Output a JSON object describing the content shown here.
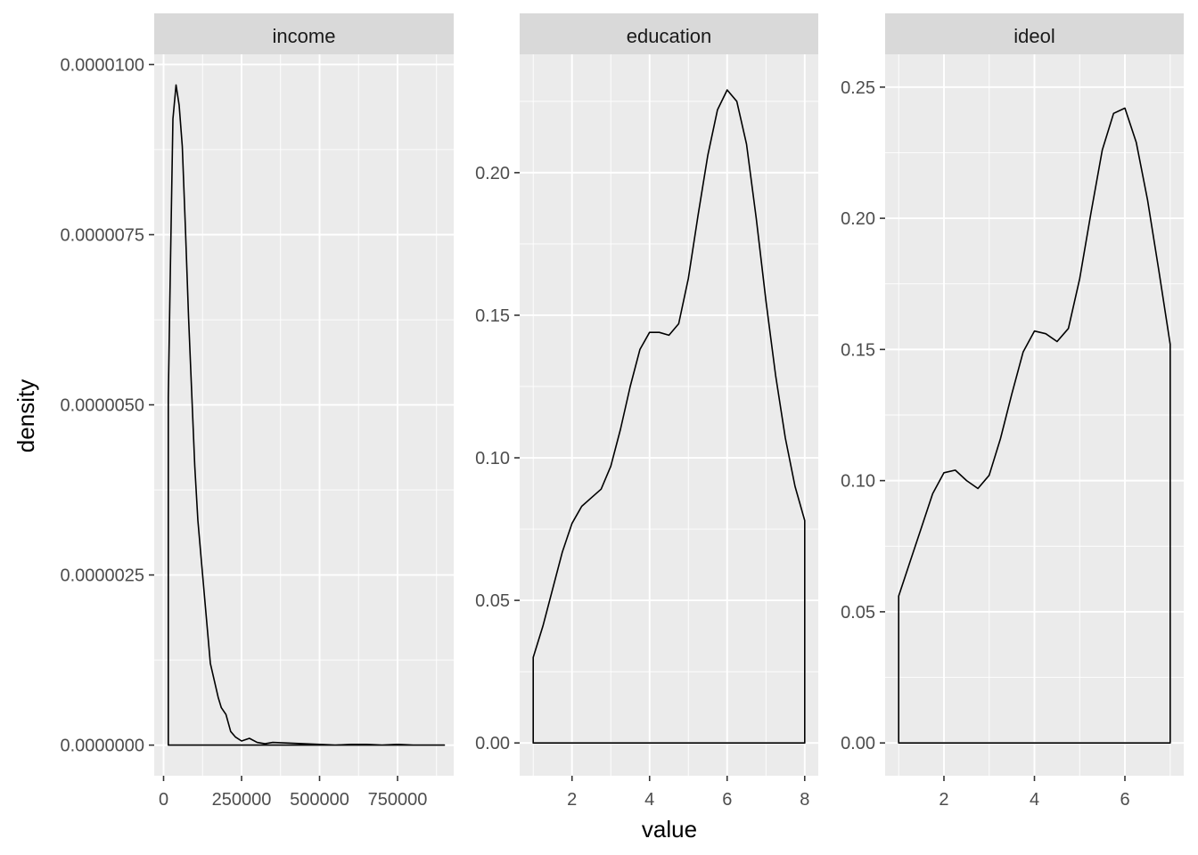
{
  "chart_data": {
    "type": "area",
    "xlabel": "value",
    "ylabel": "density",
    "facets": [
      {
        "name": "income",
        "xlim": [
          -30000,
          930000
        ],
        "ylim": [
          -4.5e-07,
          1.015e-05
        ],
        "x_ticks": [
          0,
          250000,
          500000,
          750000
        ],
        "x_tick_labels": [
          "0",
          "250000",
          "500000",
          "750000"
        ],
        "y_ticks": [
          0,
          2.5e-06,
          5e-06,
          7.5e-06,
          1e-05
        ],
        "y_tick_labels": [
          "0.0000000",
          "0.0000025",
          "0.0000050",
          "0.0000075",
          "0.0000100"
        ],
        "x": [
          15000,
          20000,
          25000,
          30000,
          40000,
          50000,
          60000,
          70000,
          80000,
          90000,
          100000,
          110000,
          125000,
          150000,
          175000,
          185000,
          200000,
          215000,
          230000,
          250000,
          275000,
          300000,
          325000,
          350000,
          400000,
          450000,
          500000,
          550000,
          600000,
          650000,
          700000,
          750000,
          800000,
          850000,
          900000
        ],
        "y": [
          5.1e-06,
          6.5e-06,
          7.9e-06,
          9.2e-06,
          9.7e-06,
          9.4e-06,
          8.8e-06,
          7.6e-06,
          6.3e-06,
          5.2e-06,
          4.1e-06,
          3.3e-06,
          2.5e-06,
          1.2e-06,
          7e-07,
          5.5e-07,
          4.5e-07,
          2e-07,
          1.2e-07,
          6e-08,
          1e-07,
          4e-08,
          2e-08,
          4e-08,
          3e-08,
          2e-08,
          1e-08,
          0.0,
          1e-08,
          1e-08,
          0.0,
          1e-08,
          0.0,
          0.0,
          0.0
        ]
      },
      {
        "name": "education",
        "xlim": [
          0.65,
          8.35
        ],
        "ylim": [
          -0.0115,
          0.2415
        ],
        "x_ticks": [
          2,
          4,
          6,
          8
        ],
        "x_tick_labels": [
          "2",
          "4",
          "6",
          "8"
        ],
        "y_ticks": [
          0,
          0.05,
          0.1,
          0.15,
          0.2
        ],
        "y_tick_labels": [
          "0.00",
          "0.05",
          "0.10",
          "0.15",
          "0.20"
        ],
        "x": [
          1,
          1.25,
          1.5,
          1.75,
          2,
          2.25,
          2.5,
          2.75,
          3,
          3.25,
          3.5,
          3.75,
          4,
          4.25,
          4.5,
          4.75,
          5,
          5.25,
          5.5,
          5.75,
          6,
          6.25,
          6.5,
          6.75,
          7,
          7.25,
          7.5,
          7.75,
          8
        ],
        "y": [
          0.03,
          0.041,
          0.054,
          0.067,
          0.077,
          0.083,
          0.086,
          0.089,
          0.097,
          0.11,
          0.125,
          0.138,
          0.144,
          0.144,
          0.143,
          0.147,
          0.163,
          0.185,
          0.206,
          0.222,
          0.229,
          0.225,
          0.21,
          0.184,
          0.155,
          0.129,
          0.107,
          0.09,
          0.078
        ]
      },
      {
        "name": "ideol",
        "xlim": [
          0.7,
          7.3
        ],
        "ylim": [
          -0.0125,
          0.2625
        ],
        "x_ticks": [
          2,
          4,
          6
        ],
        "x_tick_labels": [
          "2",
          "4",
          "6"
        ],
        "y_ticks": [
          0,
          0.05,
          0.1,
          0.15,
          0.2,
          0.25
        ],
        "y_tick_labels": [
          "0.00",
          "0.05",
          "0.10",
          "0.15",
          "0.20",
          "0.25"
        ],
        "x": [
          1,
          1.25,
          1.5,
          1.75,
          2,
          2.25,
          2.5,
          2.75,
          3,
          3.25,
          3.5,
          3.75,
          4,
          4.25,
          4.5,
          4.75,
          5,
          5.25,
          5.5,
          5.75,
          6,
          6.25,
          6.5,
          6.75,
          7
        ],
        "y": [
          0.056,
          0.069,
          0.082,
          0.095,
          0.103,
          0.104,
          0.1,
          0.097,
          0.102,
          0.116,
          0.133,
          0.149,
          0.157,
          0.156,
          0.153,
          0.158,
          0.177,
          0.202,
          0.226,
          0.24,
          0.242,
          0.229,
          0.207,
          0.18,
          0.152
        ]
      }
    ]
  }
}
